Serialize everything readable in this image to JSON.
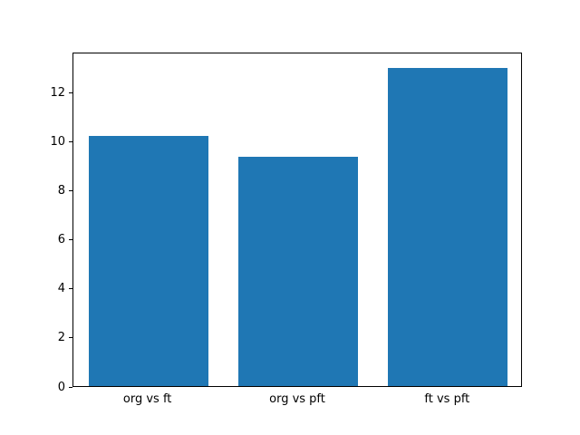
{
  "chart_data": {
    "type": "bar",
    "categories": [
      "org vs ft",
      "org vs pft",
      "ft vs pft"
    ],
    "values": [
      10.2,
      9.35,
      13.0
    ],
    "title": "",
    "xlabel": "",
    "ylabel": "",
    "ylim": [
      0,
      13.65
    ],
    "yticks": [
      0,
      2,
      4,
      6,
      8,
      10,
      12
    ],
    "bar_color": "#1f77b4",
    "background_color": "#ffffff",
    "grid": false,
    "legend": null,
    "bar_width_fraction": 0.8
  }
}
